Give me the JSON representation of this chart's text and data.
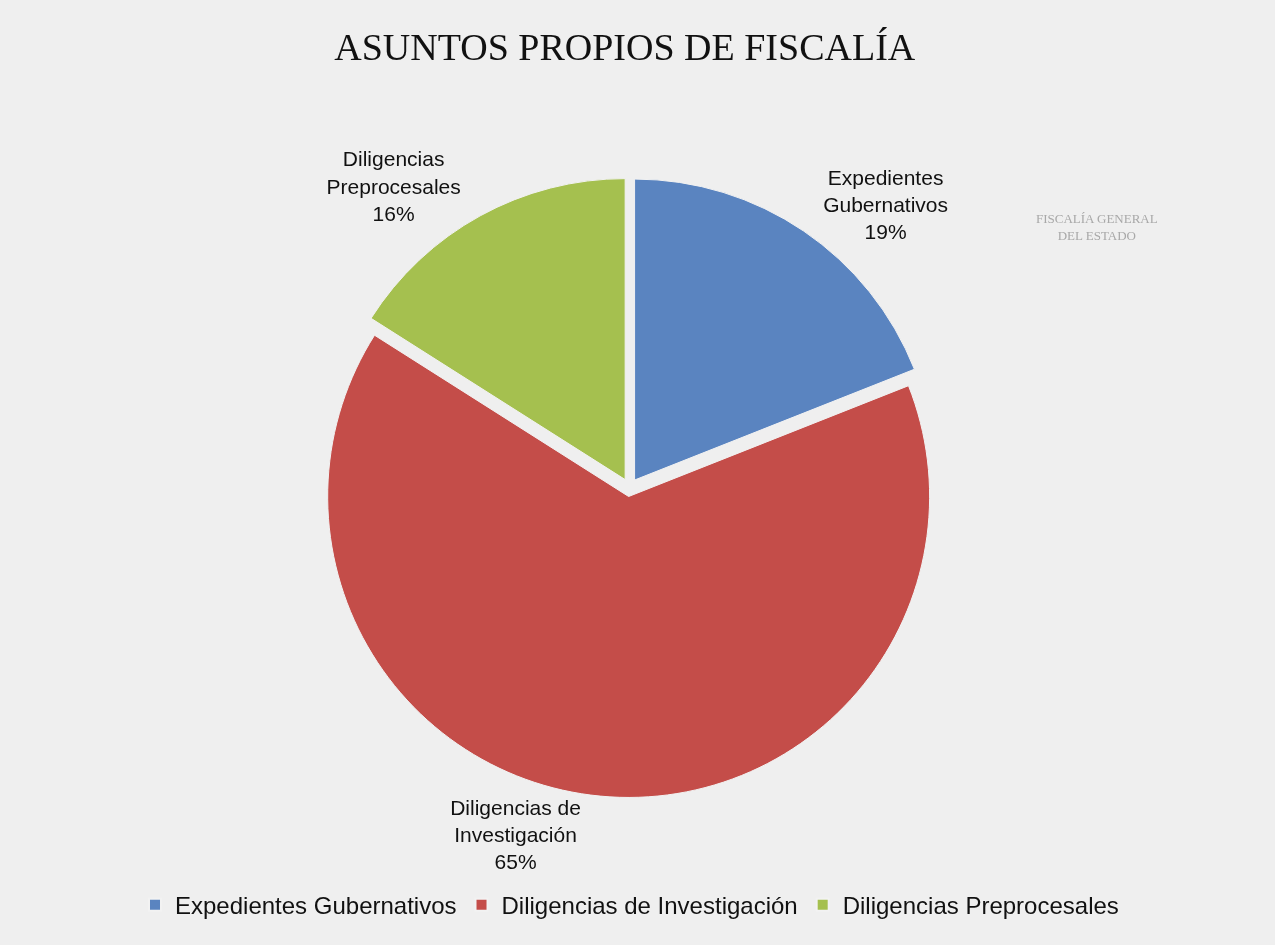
{
  "chart_data": {
    "type": "pie",
    "title": "ASUNTOS PROPIOS DE FISCALÍA",
    "categories": [
      "Expedientes Gubernativos",
      "Diligencias de Investigación",
      "Diligencias Preprocesales"
    ],
    "values": [
      19,
      65,
      16
    ],
    "value_labels": [
      "19%",
      "65%",
      "16%"
    ],
    "colors": [
      "#5a84c0",
      "#c44d49",
      "#a5c04f"
    ],
    "legend": "bottom",
    "annotations": [
      "FISCALÍA GENERAL DEL ESTADO"
    ]
  }
}
